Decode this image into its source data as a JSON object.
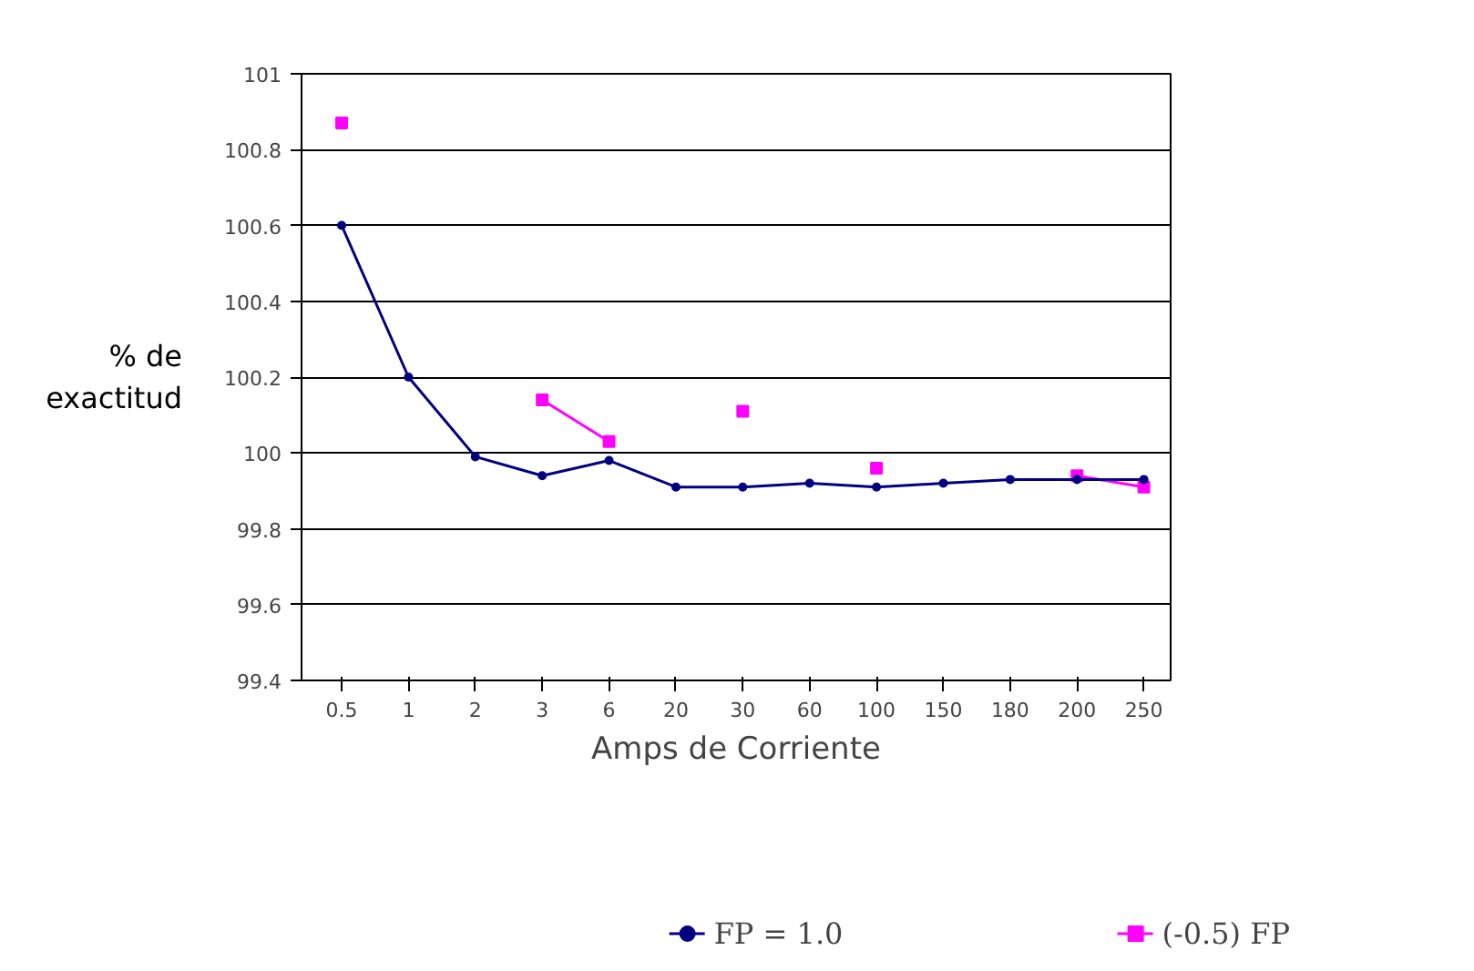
{
  "chart_data": {
    "type": "line",
    "xlabel": "Amps de Corriente",
    "ylabel": "% de exactitud",
    "categories": [
      "0.5",
      "1",
      "2",
      "3",
      "6",
      "20",
      "30",
      "60",
      "100",
      "150",
      "180",
      "200",
      "250"
    ],
    "ylim": [
      99.4,
      101
    ],
    "yticks": [
      99.4,
      99.6,
      99.8,
      100,
      100.2,
      100.4,
      100.6,
      100.8,
      101
    ],
    "grid": "y",
    "legend": "bottom",
    "series": [
      {
        "name": "FP = 1.0",
        "color": "#000080",
        "marker": "circle",
        "values": [
          100.6,
          100.2,
          99.99,
          99.94,
          99.98,
          99.91,
          99.91,
          99.92,
          99.91,
          99.92,
          99.93,
          99.93,
          99.93
        ]
      },
      {
        "name": "(-0.5) FP",
        "color": "#ff00ff",
        "marker": "square",
        "values": [
          100.87,
          null,
          null,
          100.14,
          100.03,
          null,
          100.11,
          null,
          99.96,
          null,
          null,
          99.94,
          99.91
        ]
      }
    ]
  }
}
